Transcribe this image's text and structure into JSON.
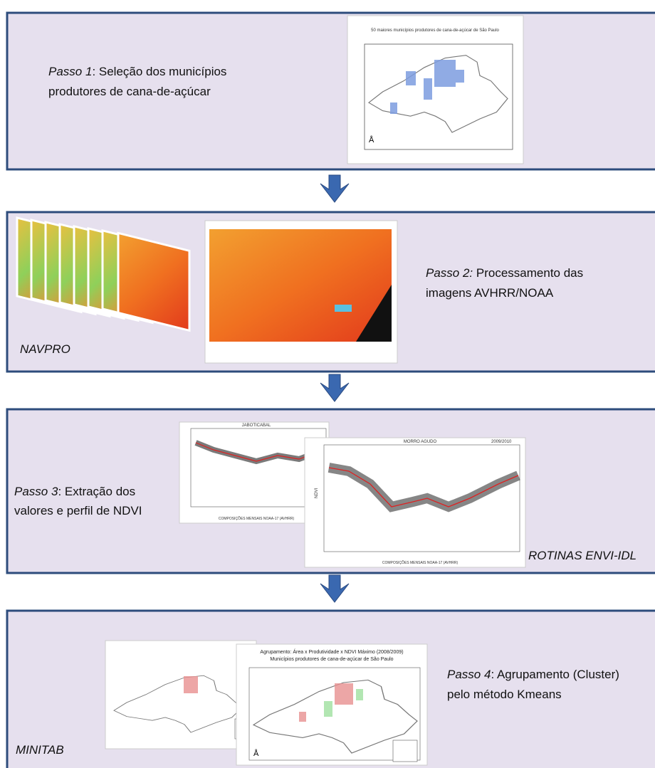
{
  "steps": [
    {
      "label": "Passo 1",
      "text": ": Seleção dos municípios",
      "line2": "produtores de cana-de-açúcar"
    },
    {
      "label": "Passo 2:",
      "text": " Processamento das",
      "line2": "imagens AVHRR/NOAA",
      "tool": "NAVPRO"
    },
    {
      "label": "Passo 3",
      "text": ": Extração dos",
      "line2": "valores e perfil de NDVI",
      "tool": "ROTINAS ENVI-IDL"
    },
    {
      "label": "Passo 4",
      "text": ": Agrupamento (Cluster)",
      "line2": "pelo método Kmeans",
      "tool": "MINITAB"
    }
  ],
  "figures": {
    "map1_title": "50 maiores municípios produtores de cana-de-açúcar de São Paulo",
    "chart1_title": "JABOTICABAL",
    "chart2_title": "MORRO AGUDO",
    "season": "2009/2010",
    "chart_xlabel": "COMPOSIÇÕES MENSAIS NOAA-17 (AVHRR)",
    "chart_ylabel": "NDVI",
    "map2_title": "Agrupamento:  Área x Produtividade x NDVI Máximo (2008/2009)",
    "map2_subtitle": "Municípios produtores de cana-de-açúcar de São Paulo"
  }
}
